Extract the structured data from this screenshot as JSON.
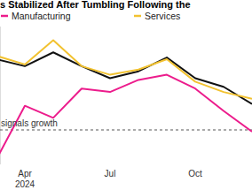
{
  "chart_data": {
    "type": "line",
    "title": "s Stabilized After Tumbling Following the",
    "categories": [
      null,
      "Apr",
      null,
      null,
      "Jul",
      null,
      null,
      "Oct",
      null,
      null
    ],
    "series": [
      {
        "color": "#111111",
        "values": [
          54.1,
          53.7,
          54.5,
          53.7,
          53.0,
          53.4,
          54.2,
          53.0,
          52.5,
          51.5
        ]
      },
      {
        "name": "Manufacturing",
        "color": "#ec1c8c",
        "values": [
          48.3,
          51.4,
          50.7,
          52.4,
          52.2,
          52.9,
          53.2,
          52.4,
          51.1,
          49.9
        ]
      },
      {
        "name": "Services",
        "color": "#f2c230",
        "values": [
          54.3,
          53.8,
          55.2,
          53.7,
          53.2,
          53.5,
          54.1,
          52.8,
          52.2,
          51.8
        ]
      }
    ],
    "ylim": [
      48,
      56
    ],
    "yticks": [
      50
    ],
    "grid": true,
    "tick_labels": "x",
    "annotations": [
      {
        "text": "signals growth",
        "y": 50
      },
      {
        "text": "2024",
        "category": 1
      }
    ]
  }
}
